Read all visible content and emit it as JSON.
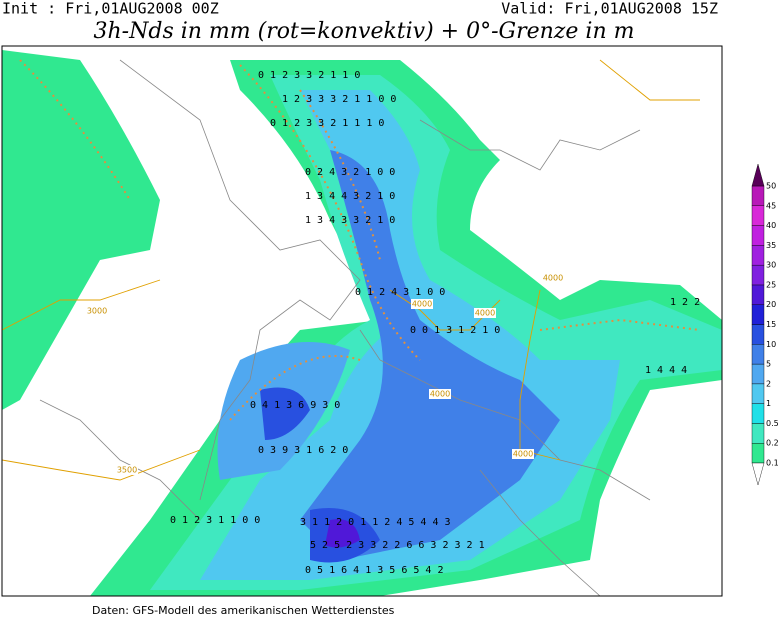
{
  "header": {
    "init": "Init : Fri,01AUG2008 00Z",
    "valid": "Valid: Fri,01AUG2008 15Z",
    "title": "3h-Nds in mm (rot=konvektiv) + 0°-Grenze in m"
  },
  "footer": "Daten: GFS-Modell des amerikanischen Wetterdienstes",
  "legend": {
    "ticks": [
      0.1,
      0.2,
      0.5,
      1,
      2,
      5,
      10,
      15,
      20,
      25,
      30,
      35,
      40,
      45,
      50
    ],
    "colors": [
      "#30e890",
      "#40e8c0",
      "#20e0e8",
      "#50c8f0",
      "#50a8f0",
      "#4080e8",
      "#2850e0",
      "#2020d8",
      "#5018d8",
      "#8020e0",
      "#a020e0",
      "#c020e0",
      "#d828d8",
      "#b818b8"
    ],
    "over_color": "#580058"
  },
  "contour_labels": [
    "4000",
    "4000",
    "4000",
    "4000",
    "4000",
    "3000",
    "3500"
  ],
  "grid_rows": [
    "0 1 2 3 3 2 1 1 0",
    "1 2 3 3 3 2 1 1 0 0",
    "0 1 2 3 3 2 1 1 1 0",
    "0 2 4 3 2 1 0 0",
    "1 3 4 4 3 2 1 0",
    "1 3 4 3 3 2 1 0",
    "0 1 2 4 3 1 0 0",
    "0 0 1 3 1 2 1 0",
    "0 4 1 3 6 9 3 0",
    "0 3 9 3 1 6 2 0",
    "3 1 1 2 0 1 1 2 4 5 4 4 3",
    "5 2 5 2 3 3 2 2 6 6 3 2 3 2 1",
    "0 5 1 6 4 1 3 5 6 5 4 2",
    "0 1 2 3 1 1 0 0",
    "1 4 4 4",
    "1 2 2"
  ]
}
